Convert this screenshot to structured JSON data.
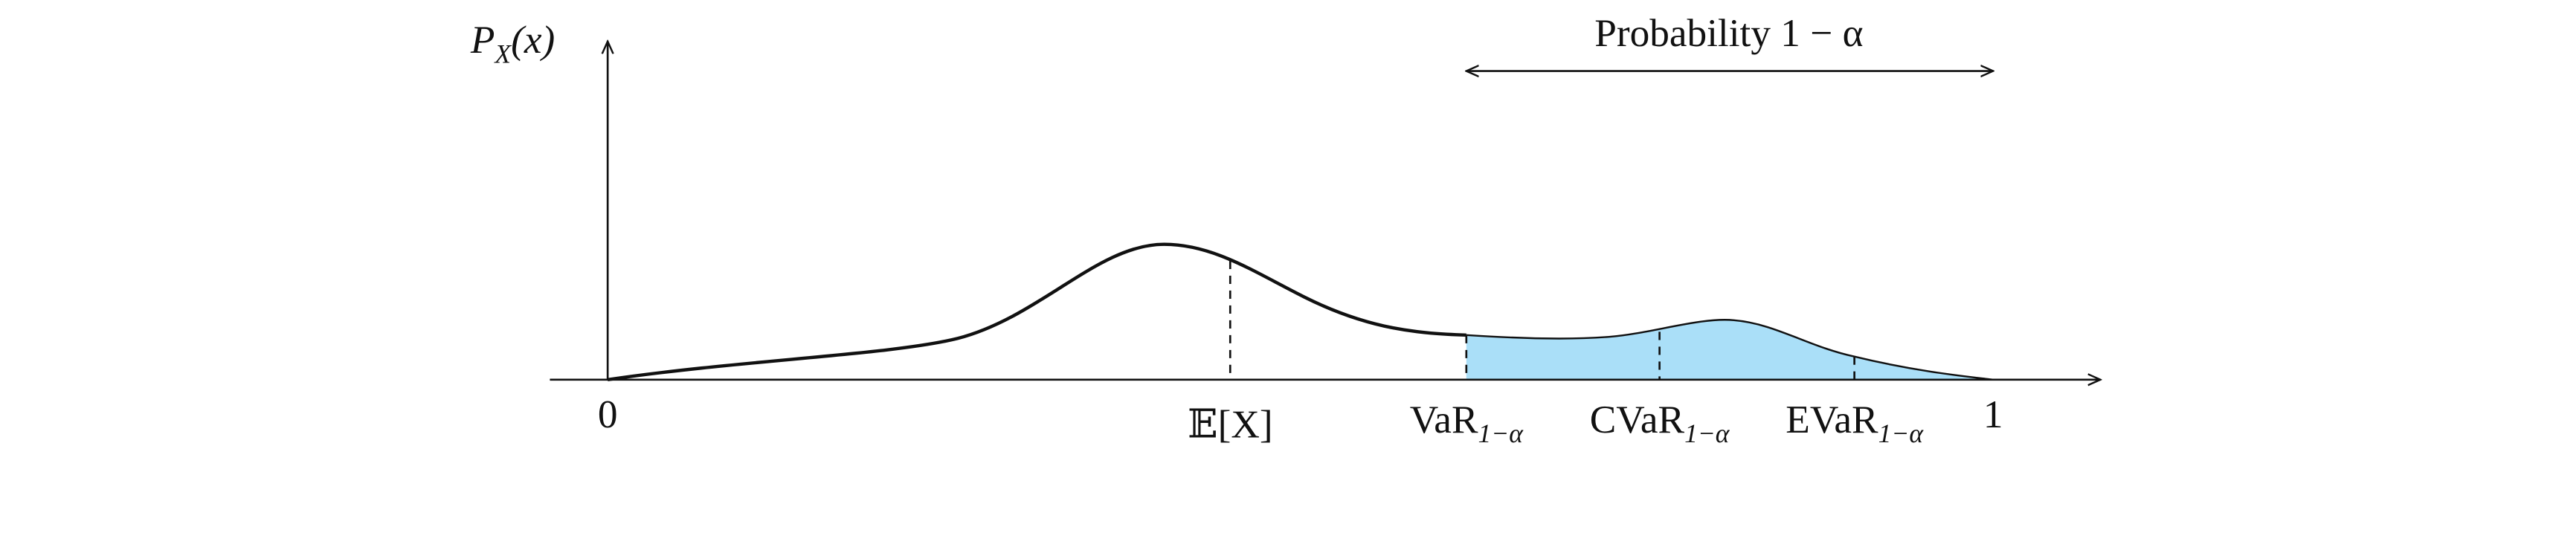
{
  "y_axis_label": {
    "base": "P",
    "sub": "X",
    "arg": "(x)"
  },
  "x_origin_label": "0",
  "x_end_label": "1",
  "mean_label": "𝔼[X]",
  "markers": [
    {
      "main": "VaR",
      "sub": "1−α"
    },
    {
      "main": "CVaR",
      "sub": "1−α"
    },
    {
      "main": "EVaR",
      "sub": "1−α"
    }
  ],
  "probability_label": "Probability 1 − α"
}
